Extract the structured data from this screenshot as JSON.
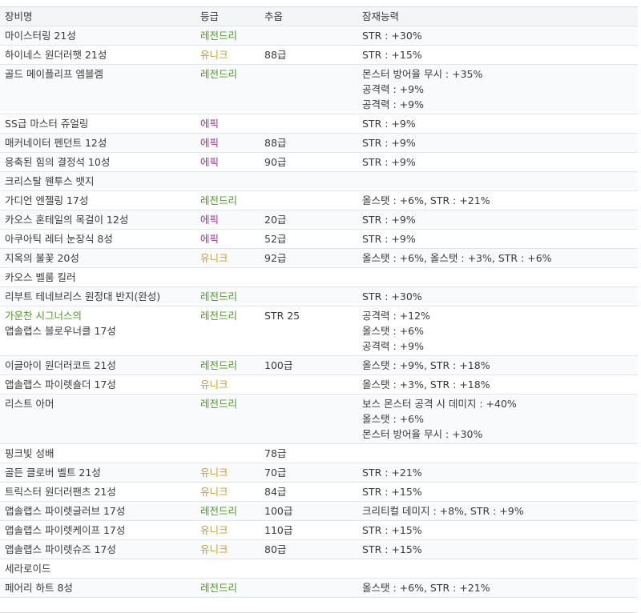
{
  "table": {
    "headers": {
      "name": "장비명",
      "grade": "등급",
      "flame": "추옵",
      "potential": "잠재능력"
    },
    "grade_colors": {
      "레전드리": "#4f9a22",
      "유니크": "#c7a11d",
      "에픽": "#9a3a8a"
    },
    "rows": [
      {
        "name": [
          "마이스터링 21성"
        ],
        "grade": "레전드리",
        "flame": "",
        "potential": [
          "STR : +30%"
        ]
      },
      {
        "name": [
          "하이네스 원더러햇 21성"
        ],
        "grade": "유니크",
        "flame": "88급",
        "potential": [
          "STR : +15%"
        ]
      },
      {
        "name": [
          "골드 메이플리프 엠블렘"
        ],
        "grade": "레전드리",
        "flame": "",
        "potential": [
          "몬스터 방어율 무시 : +35%",
          "공격력 : +9%",
          "공격력 : +9%"
        ]
      },
      {
        "name": [
          "SS급 마스터 쥬얼링"
        ],
        "grade": "에픽",
        "flame": "",
        "potential": [
          "STR : +9%"
        ]
      },
      {
        "name": [
          "매커네이터 펜던트 12성"
        ],
        "grade": "에픽",
        "flame": "88급",
        "potential": [
          "STR : +9%"
        ]
      },
      {
        "name": [
          "응축된 힘의 결정석 10성"
        ],
        "grade": "에픽",
        "flame": "90급",
        "potential": [
          "STR : +9%"
        ]
      },
      {
        "name": [
          "크리스탈 웬투스 뱃지"
        ],
        "grade": "",
        "flame": "",
        "potential": []
      },
      {
        "name": [
          "가디언 엔젤링 17성"
        ],
        "grade": "레전드리",
        "flame": "",
        "potential": [
          "올스탯 : +6%, STR : +21%"
        ]
      },
      {
        "name": [
          "카오스 혼테일의 목걸이 12성"
        ],
        "grade": "에픽",
        "flame": "20급",
        "potential": [
          "STR : +9%"
        ]
      },
      {
        "name": [
          "아쿠아틱 레터 눈장식 8성"
        ],
        "grade": "에픽",
        "flame": "52급",
        "potential": [
          "STR : +9%"
        ]
      },
      {
        "name": [
          "지옥의 불꽃 20성"
        ],
        "grade": "유니크",
        "flame": "92급",
        "potential": [
          "올스탯 : +6%, 올스탯 : +3%, STR : +6%"
        ]
      },
      {
        "name": [
          "카오스 벨룸 킬러"
        ],
        "grade": "",
        "flame": "",
        "potential": []
      },
      {
        "name": [
          "리부트 테네브리스 원정대 반지(완성)"
        ],
        "grade": "레전드리",
        "flame": "",
        "potential": [
          "STR : +30%"
        ]
      },
      {
        "name": [
          "가운찬 시그너스의",
          "앱솔랩스 블로우너클 17성"
        ],
        "name_first_green": true,
        "grade": "레전드리",
        "flame": "STR 25",
        "potential": [
          "공격력 : +12%",
          "올스탯 : +6%",
          "공격력 : +9%"
        ]
      },
      {
        "name": [
          "이글아이 원더러코트 21성"
        ],
        "grade": "레전드리",
        "flame": "100급",
        "potential": [
          "올스탯 : +9%, STR : +18%"
        ]
      },
      {
        "name": [
          "앱솔랩스 파이렛숄더 17성"
        ],
        "grade": "유니크",
        "flame": "",
        "potential": [
          "올스탯 : +3%, STR : +18%"
        ]
      },
      {
        "name": [
          "리스트 아머"
        ],
        "grade": "레전드리",
        "flame": "",
        "potential": [
          "보스 몬스터 공격 시 데미지 : +40%",
          "올스탯 : +6%",
          "몬스터 방어율 무시 : +30%"
        ]
      },
      {
        "name": [
          "핑크빛 성배"
        ],
        "grade": "",
        "flame": "78급",
        "potential": []
      },
      {
        "name": [
          "골든 클로버 벨트 21성"
        ],
        "grade": "유니크",
        "flame": "70급",
        "potential": [
          "STR : +21%"
        ]
      },
      {
        "name": [
          "트릭스터 원더러팬츠 21성"
        ],
        "grade": "유니크",
        "flame": "84급",
        "potential": [
          "STR : +15%"
        ]
      },
      {
        "name": [
          "앱솔랩스 파이렛글러브 17성"
        ],
        "grade": "레전드리",
        "flame": "100급",
        "potential": [
          "크리티컬 데미지 : +8%, STR : +9%"
        ]
      },
      {
        "name": [
          "앱솔랩스 파이렛케이프 17성"
        ],
        "grade": "유니크",
        "flame": "110급",
        "potential": [
          "STR : +15%"
        ]
      },
      {
        "name": [
          "앱솔랩스 파이렛슈즈 17성"
        ],
        "grade": "유니크",
        "flame": "80급",
        "potential": [
          "STR : +15%"
        ]
      },
      {
        "name": [
          "세라로이드"
        ],
        "grade": "",
        "flame": "",
        "potential": []
      },
      {
        "name": [
          "페어리 하트 8성"
        ],
        "grade": "레전드리",
        "flame": "",
        "potential": [
          "올스탯 : +6%, STR : +21%"
        ]
      }
    ]
  }
}
